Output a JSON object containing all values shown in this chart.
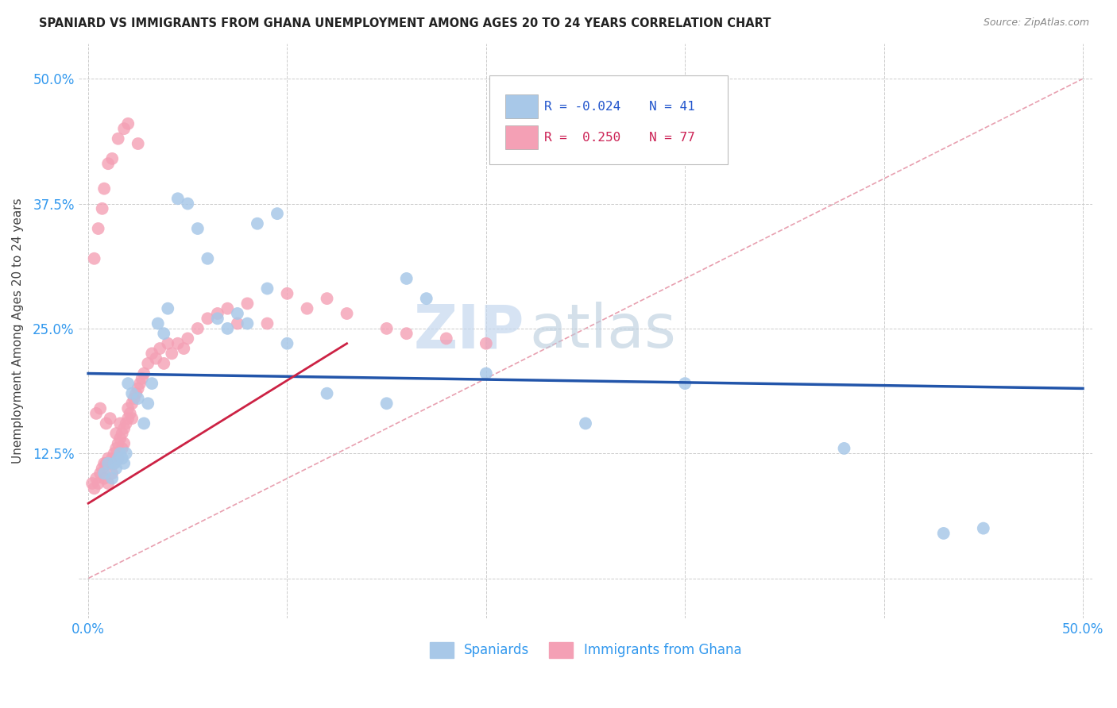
{
  "title": "SPANIARD VS IMMIGRANTS FROM GHANA UNEMPLOYMENT AMONG AGES 20 TO 24 YEARS CORRELATION CHART",
  "source": "Source: ZipAtlas.com",
  "ylabel": "Unemployment Among Ages 20 to 24 years",
  "xlim": [
    -0.005,
    0.505
  ],
  "ylim": [
    -0.04,
    0.535
  ],
  "xtick_positions": [
    0.0,
    0.1,
    0.2,
    0.3,
    0.4,
    0.5
  ],
  "ytick_positions": [
    0.0,
    0.125,
    0.25,
    0.375,
    0.5
  ],
  "xticklabels": [
    "0.0%",
    "",
    "",
    "",
    "",
    "50.0%"
  ],
  "yticklabels": [
    "",
    "12.5%",
    "25.0%",
    "37.5%",
    "50.0%"
  ],
  "legend_blue_r": "R = -0.024",
  "legend_blue_n": "N = 41",
  "legend_pink_r": "R =  0.250",
  "legend_pink_n": "N = 77",
  "blue_color": "#a8c8e8",
  "pink_color": "#f4a0b5",
  "trendline_blue_color": "#2255aa",
  "trendline_pink_color": "#cc2244",
  "diagonal_color": "#e8a0b0",
  "watermark_zip": "ZIP",
  "watermark_atlas": "atlas",
  "spaniards_x": [
    0.008,
    0.01,
    0.012,
    0.013,
    0.014,
    0.015,
    0.016,
    0.017,
    0.018,
    0.019,
    0.02,
    0.022,
    0.025,
    0.028,
    0.03,
    0.032,
    0.035,
    0.038,
    0.04,
    0.045,
    0.05,
    0.055,
    0.06,
    0.065,
    0.07,
    0.075,
    0.08,
    0.085,
    0.09,
    0.095,
    0.1,
    0.12,
    0.15,
    0.16,
    0.17,
    0.2,
    0.25,
    0.3,
    0.38,
    0.43,
    0.45
  ],
  "spaniards_y": [
    0.105,
    0.115,
    0.1,
    0.115,
    0.11,
    0.12,
    0.125,
    0.12,
    0.115,
    0.125,
    0.195,
    0.185,
    0.18,
    0.155,
    0.175,
    0.195,
    0.255,
    0.245,
    0.27,
    0.38,
    0.375,
    0.35,
    0.32,
    0.26,
    0.25,
    0.265,
    0.255,
    0.355,
    0.29,
    0.365,
    0.235,
    0.185,
    0.175,
    0.3,
    0.28,
    0.205,
    0.155,
    0.195,
    0.13,
    0.045,
    0.05
  ],
  "ghana_x": [
    0.002,
    0.003,
    0.004,
    0.005,
    0.006,
    0.007,
    0.008,
    0.008,
    0.009,
    0.01,
    0.01,
    0.011,
    0.012,
    0.012,
    0.013,
    0.013,
    0.014,
    0.015,
    0.015,
    0.016,
    0.017,
    0.017,
    0.018,
    0.018,
    0.019,
    0.02,
    0.02,
    0.021,
    0.022,
    0.023,
    0.024,
    0.025,
    0.026,
    0.027,
    0.028,
    0.03,
    0.032,
    0.034,
    0.036,
    0.038,
    0.04,
    0.042,
    0.045,
    0.048,
    0.05,
    0.055,
    0.06,
    0.065,
    0.07,
    0.075,
    0.08,
    0.09,
    0.1,
    0.11,
    0.12,
    0.13,
    0.15,
    0.16,
    0.18,
    0.2,
    0.003,
    0.005,
    0.007,
    0.008,
    0.01,
    0.012,
    0.015,
    0.018,
    0.02,
    0.025,
    0.004,
    0.006,
    0.009,
    0.011,
    0.014,
    0.016,
    0.022
  ],
  "ghana_y": [
    0.095,
    0.09,
    0.1,
    0.095,
    0.105,
    0.11,
    0.115,
    0.1,
    0.115,
    0.12,
    0.095,
    0.115,
    0.12,
    0.105,
    0.115,
    0.125,
    0.13,
    0.135,
    0.12,
    0.14,
    0.145,
    0.13,
    0.15,
    0.135,
    0.155,
    0.16,
    0.17,
    0.165,
    0.175,
    0.18,
    0.185,
    0.19,
    0.195,
    0.2,
    0.205,
    0.215,
    0.225,
    0.22,
    0.23,
    0.215,
    0.235,
    0.225,
    0.235,
    0.23,
    0.24,
    0.25,
    0.26,
    0.265,
    0.27,
    0.255,
    0.275,
    0.255,
    0.285,
    0.27,
    0.28,
    0.265,
    0.25,
    0.245,
    0.24,
    0.235,
    0.32,
    0.35,
    0.37,
    0.39,
    0.415,
    0.42,
    0.44,
    0.45,
    0.455,
    0.435,
    0.165,
    0.17,
    0.155,
    0.16,
    0.145,
    0.155,
    0.16
  ],
  "blue_trendline_y0": 0.205,
  "blue_trendline_y1": 0.19,
  "pink_trendline_x0": 0.0,
  "pink_trendline_y0": 0.075,
  "pink_trendline_x1": 0.13,
  "pink_trendline_y1": 0.235
}
